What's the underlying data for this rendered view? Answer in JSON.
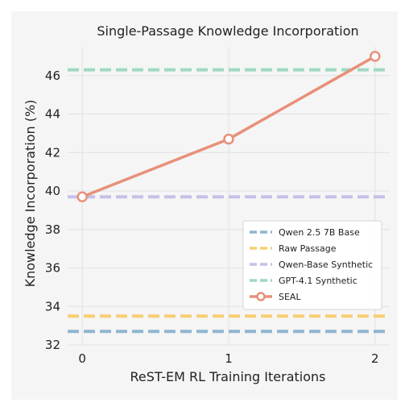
{
  "chart_data": {
    "type": "line",
    "title": "Single-Passage Knowledge Incorporation",
    "xlabel": "ReST-EM RL Training Iterations",
    "ylabel": "Knowledge Incorporation (%)",
    "x_ticks": [
      0,
      1,
      2
    ],
    "y_ticks": [
      32,
      34,
      36,
      38,
      40,
      42,
      44,
      46
    ],
    "xlim": [
      -0.1,
      2.1
    ],
    "ylim": [
      32,
      47.5
    ],
    "grid": true,
    "legend_position": "lower-right",
    "baselines": [
      {
        "name": "Qwen 2.5 7B Base",
        "value": 32.7,
        "color": "#8fb6cf"
      },
      {
        "name": "Raw Passage",
        "value": 33.5,
        "color": "#f6cf72"
      },
      {
        "name": "Qwen-Base Synthetic",
        "value": 39.7,
        "color": "#c6c1e6"
      },
      {
        "name": "GPT-4.1 Synthetic",
        "value": 46.3,
        "color": "#9fd9c0"
      }
    ],
    "series": [
      {
        "name": "SEAL",
        "x": [
          0,
          1,
          2
        ],
        "values": [
          39.7,
          42.7,
          47.0
        ],
        "color": "#e8907a"
      }
    ]
  }
}
